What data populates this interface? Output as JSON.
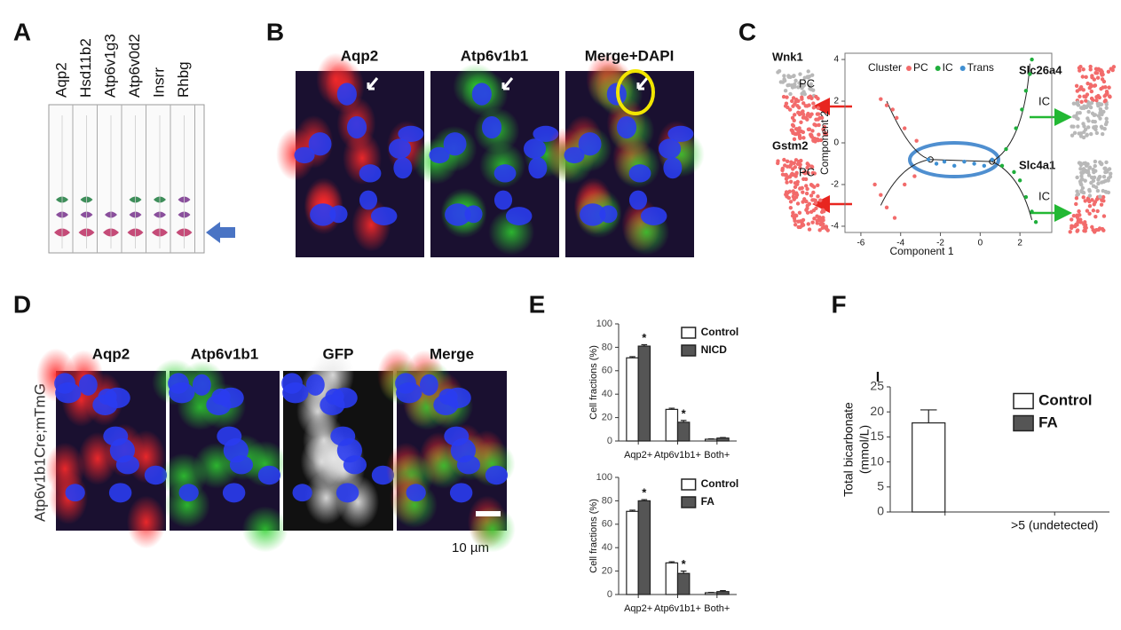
{
  "panel_labels": [
    "A",
    "B",
    "C",
    "D",
    "E",
    "F"
  ],
  "panel_a": {
    "genes": [
      "Aqp2",
      "Hsd11b2",
      "Atp6v1g3",
      "Atp6v0d2",
      "Insrr",
      "Rhbg"
    ]
  },
  "panel_b": {
    "channels": [
      "Aqp2",
      "Atp6v1b1",
      "Merge+DAPI"
    ]
  },
  "panel_c": {
    "umaps": [
      {
        "gene": "Wnk1",
        "cluster": "PC"
      },
      {
        "gene": "Gstm2",
        "cluster": "PC"
      },
      {
        "gene": "Slc26a4",
        "cluster": "IC"
      },
      {
        "gene": "Slc4a1",
        "cluster": "IC"
      }
    ]
  },
  "panel_d": {
    "channels": [
      "Aqp2",
      "Atp6v1b1",
      "GFP",
      "Merge"
    ],
    "row_label": "Atp6v1b1Cre;mTmG",
    "scale_bar": "10 µm"
  },
  "chart_data": [
    {
      "type": "scatter",
      "legend_title": "Cluster",
      "xlabel": "Component 1",
      "ylabel": "Component 2",
      "xlim": [
        -6.8,
        3.6
      ],
      "ylim": [
        -4.3,
        4.3
      ],
      "xticks": [
        -6,
        -4,
        -2,
        0,
        2
      ],
      "yticks": [
        4,
        2,
        0,
        -2,
        -4
      ],
      "series": [
        {
          "name": "PC",
          "color": "#f26b6b",
          "x": [
            -5.0,
            -4.7,
            -4.4,
            -4.2,
            -3.8,
            -3.2,
            -5.3,
            -5.0,
            -4.7,
            -4.3,
            -3.8,
            -3.3
          ],
          "values": [
            2.1,
            1.8,
            1.6,
            1.2,
            0.7,
            0.1,
            -2.0,
            -2.5,
            -3.1,
            -3.6,
            -2.0,
            -1.6
          ]
        },
        {
          "name": "IC",
          "color": "#1fae3c",
          "x": [
            2.6,
            2.5,
            2.3,
            2.1,
            1.8,
            1.3,
            2.0,
            2.3,
            2.6,
            2.8,
            1.7,
            1.1
          ],
          "values": [
            4.0,
            3.3,
            2.5,
            1.6,
            0.7,
            -0.3,
            -1.8,
            -2.6,
            -3.3,
            -3.8,
            -1.4,
            -1.1
          ]
        },
        {
          "name": "Trans",
          "color": "#3f8fd2",
          "x": [
            -2.6,
            -2.2,
            -1.8,
            -1.3,
            -0.8,
            -0.3,
            0.2,
            0.6
          ],
          "values": [
            -0.8,
            -1.0,
            -0.9,
            -1.1,
            -0.9,
            -1.0,
            -1.1,
            -0.8
          ]
        }
      ]
    },
    {
      "type": "bar",
      "ylabel": "Cell fractions (%)",
      "categories": [
        "Aqp2+",
        "Atp6v1b1+",
        "Both+"
      ],
      "ylim": [
        0,
        100
      ],
      "yticks": [
        0,
        20,
        40,
        60,
        80,
        100
      ],
      "series": [
        {
          "name": "Control",
          "color": "#ffffff",
          "values": [
            71,
            27,
            1.5
          ],
          "errors": [
            1,
            1,
            0.3
          ]
        },
        {
          "name": "NICD",
          "color": "#555555",
          "values": [
            81,
            16,
            2.5
          ],
          "errors": [
            1.2,
            1.5,
            0.5
          ]
        }
      ],
      "annotations": [
        {
          "text": "*",
          "category": "Aqp2+",
          "series": "NICD"
        },
        {
          "text": "*",
          "category": "Atp6v1b1+",
          "series": "NICD"
        }
      ]
    },
    {
      "type": "bar",
      "ylabel": "Cell fractions (%)",
      "categories": [
        "Aqp2+",
        "Atp6v1b1+",
        "Both+"
      ],
      "ylim": [
        0,
        100
      ],
      "yticks": [
        0,
        20,
        40,
        60,
        80,
        100
      ],
      "series": [
        {
          "name": "Control",
          "color": "#ffffff",
          "values": [
            71,
            27,
            1.5
          ],
          "errors": [
            1,
            1,
            0.3
          ]
        },
        {
          "name": "FA",
          "color": "#555555",
          "values": [
            80,
            18,
            2.5
          ],
          "errors": [
            1,
            2,
            0.8
          ]
        }
      ],
      "annotations": [
        {
          "text": "*",
          "category": "Aqp2+",
          "series": "FA"
        },
        {
          "text": "*",
          "category": "Atp6v1b1+",
          "series": "FA"
        }
      ]
    },
    {
      "type": "bar",
      "ylabel": [
        "Total bicarbonate",
        "(mmol/L)"
      ],
      "categories": [
        null,
        ">5 (undetected)"
      ],
      "ylim": [
        0,
        25
      ],
      "yticks": [
        0,
        5,
        10,
        15,
        20,
        25
      ],
      "series": [
        {
          "name": "Control",
          "color": "#ffffff",
          "values": [
            17.8,
            null
          ],
          "errors": [
            2.6,
            null
          ]
        },
        {
          "name": "FA",
          "color": "#555555",
          "values": [
            null,
            null
          ],
          "errors": [
            null,
            null
          ]
        }
      ],
      "annotations": [
        {
          "text": "I"
        }
      ]
    }
  ]
}
